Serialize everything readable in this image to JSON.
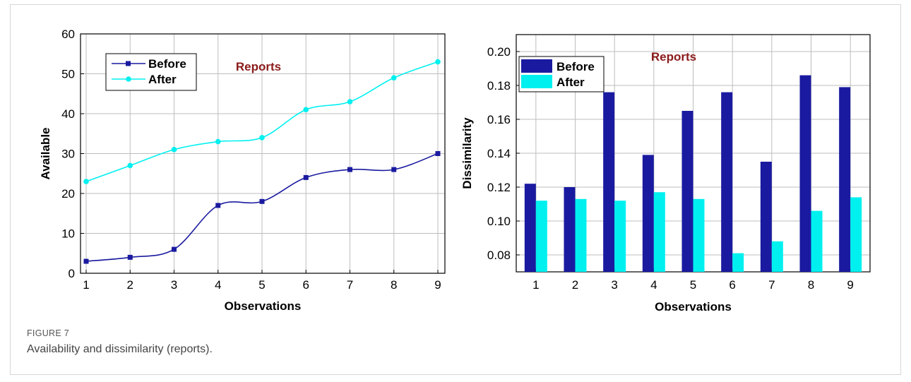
{
  "figure": {
    "label": "FIGURE 7",
    "caption": "Availability and dissimilarity (reports)."
  },
  "colors": {
    "before": "#1a1aa0",
    "after": "#00f0f0",
    "title": "#8b1a1a"
  },
  "chart_data": [
    {
      "type": "line",
      "title": "Reports",
      "xlabel": "Observations",
      "ylabel": "Available",
      "x": [
        1,
        2,
        3,
        4,
        5,
        6,
        7,
        8,
        9
      ],
      "xlim": [
        1,
        9
      ],
      "ylim": [
        0,
        60
      ],
      "yticks": [
        0,
        10,
        20,
        30,
        40,
        50,
        60
      ],
      "grid": true,
      "smooth": true,
      "legend_position": "top-left",
      "series": [
        {
          "name": "Before",
          "marker": "square",
          "values": [
            3,
            4,
            6,
            17,
            18,
            24,
            26,
            26,
            30
          ]
        },
        {
          "name": "After",
          "marker": "circle",
          "values": [
            23,
            27,
            31,
            33,
            34,
            41,
            43,
            49,
            53
          ]
        }
      ]
    },
    {
      "type": "bar",
      "title": "Reports",
      "xlabel": "Observations",
      "ylabel": "Dissimilarity",
      "categories": [
        "1",
        "2",
        "3",
        "4",
        "5",
        "6",
        "7",
        "8",
        "9"
      ],
      "ylim": [
        0.07,
        0.21
      ],
      "yticks": [
        "0.08",
        "0.10",
        "0.12",
        "0.14",
        "0.16",
        "0.18",
        "0.20"
      ],
      "grid": true,
      "legend_position": "top-left",
      "series": [
        {
          "name": "Before",
          "values": [
            0.122,
            0.12,
            0.176,
            0.139,
            0.165,
            0.176,
            0.135,
            0.186,
            0.179
          ]
        },
        {
          "name": "After",
          "values": [
            0.112,
            0.113,
            0.112,
            0.117,
            0.113,
            0.081,
            0.088,
            0.106,
            0.114
          ]
        }
      ]
    }
  ]
}
